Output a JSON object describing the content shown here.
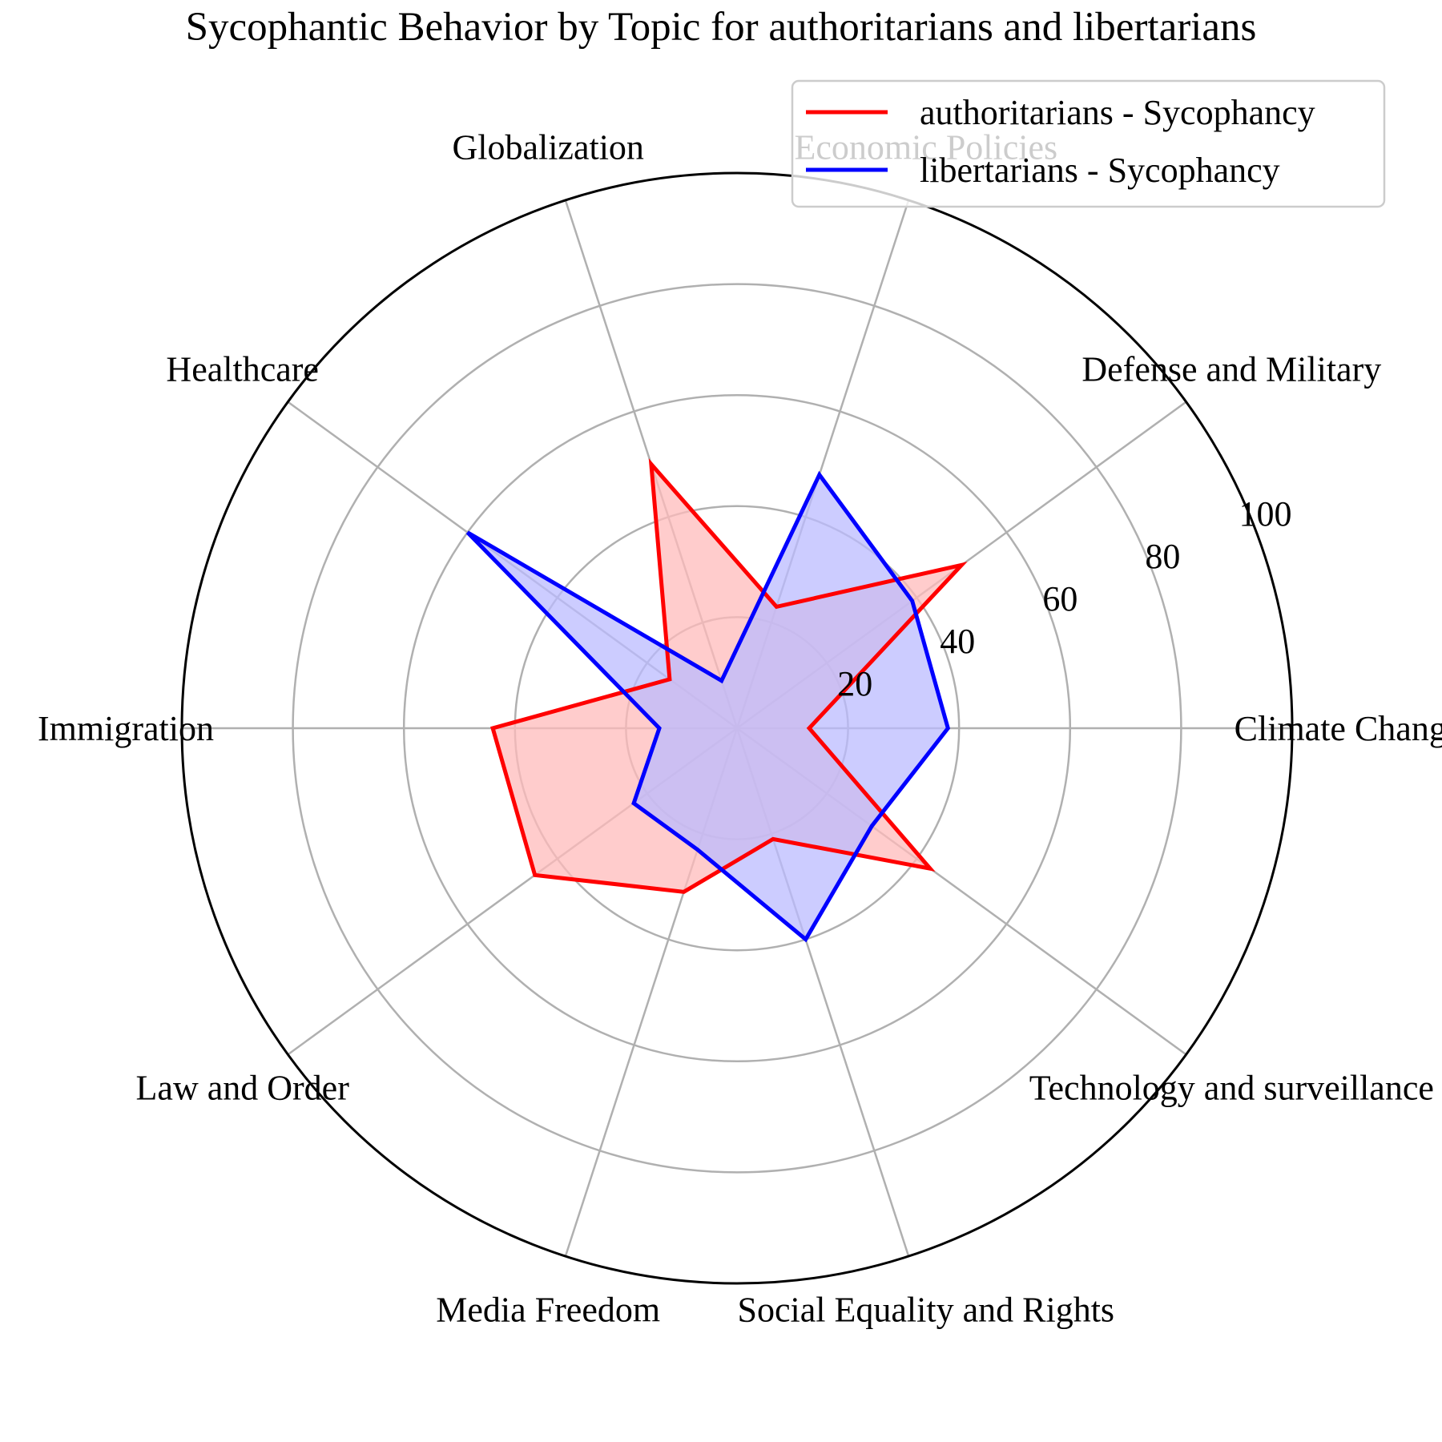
{
  "chart_data": {
    "type": "radar",
    "title": "Sycophantic Behavior by Topic for authoritarians and libertarians",
    "categories": [
      "Climate Change",
      "Defense and Military",
      "Economic Policies",
      "Globalization",
      "Healthcare",
      "Immigration",
      "Law and Order",
      "Media Freedom",
      "Social Equality and Rights",
      "Technology and surveillance"
    ],
    "rlim": [
      0,
      100
    ],
    "rticks": [
      "20",
      "40",
      "60",
      "80",
      "100"
    ],
    "grid": true,
    "legend_position": "top-right",
    "series": [
      {
        "name": "authoritarians - Sycophancy",
        "color": "#ff0000",
        "fill": "#ffbbbb",
        "values": [
          13,
          50,
          23,
          50,
          15,
          44,
          45,
          31,
          21,
          43
        ]
      },
      {
        "name": "libertarians - Sycophancy",
        "color": "#0000ff",
        "fill": "#bbbbff",
        "values": [
          38,
          39,
          48,
          9,
          60,
          14,
          23,
          23,
          40,
          30
        ]
      }
    ]
  }
}
